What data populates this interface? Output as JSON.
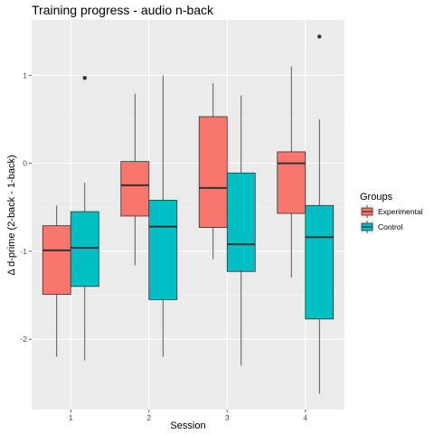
{
  "chart_data": {
    "type": "boxplot",
    "title": "Training progress - audio n-back",
    "xlabel": "Session",
    "ylabel": "Δ d-prime (2-back - 1-back)",
    "categories": [
      "1",
      "2",
      "3",
      "4"
    ],
    "y_ticks": [
      1,
      0,
      -1,
      -2
    ],
    "y_tick_labels": [
      "1",
      "0",
      "-1",
      "-2"
    ],
    "ylim": [
      -2.8,
      1.63
    ],
    "grid": true,
    "legend": {
      "title": "Groups",
      "placement": "right"
    },
    "series": [
      {
        "name": "Experimental",
        "color": "#f8766d",
        "boxes": [
          {
            "session": "1",
            "min": -2.2,
            "q1": -1.49,
            "median": -0.99,
            "q3": -0.71,
            "max": -0.48,
            "outliers": []
          },
          {
            "session": "2",
            "min": -1.16,
            "q1": -0.6,
            "median": -0.25,
            "q3": 0.02,
            "max": 0.79,
            "outliers": []
          },
          {
            "session": "3",
            "min": -1.09,
            "q1": -0.73,
            "median": -0.28,
            "q3": 0.53,
            "max": 0.91,
            "outliers": []
          },
          {
            "session": "4",
            "min": -1.3,
            "q1": -0.57,
            "median": 0.0,
            "q3": 0.13,
            "max": 1.1,
            "outliers": []
          }
        ]
      },
      {
        "name": "Control",
        "color": "#00bfc4",
        "boxes": [
          {
            "session": "1",
            "min": -2.24,
            "q1": -1.4,
            "median": -0.96,
            "q3": -0.55,
            "max": -0.22,
            "outliers": [
              0.97
            ]
          },
          {
            "session": "2",
            "min": -2.2,
            "q1": -1.55,
            "median": -0.72,
            "q3": -0.42,
            "max": 1.0,
            "outliers": []
          },
          {
            "session": "3",
            "min": -2.3,
            "q1": -1.23,
            "median": -0.92,
            "q3": -0.11,
            "max": 0.77,
            "outliers": []
          },
          {
            "session": "4",
            "min": -2.62,
            "q1": -1.77,
            "median": -0.84,
            "q3": -0.48,
            "max": 0.5,
            "outliers": [
              1.44
            ]
          }
        ]
      }
    ]
  }
}
